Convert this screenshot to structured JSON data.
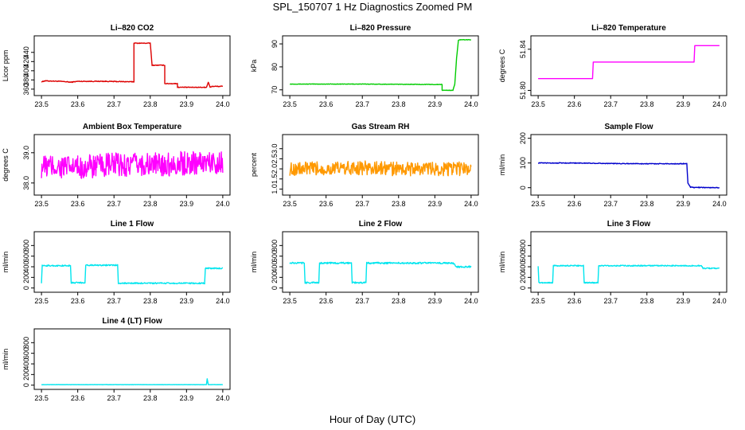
{
  "figure": {
    "title": "SPL_150707  1 Hz Diagnostics Zoomed PM",
    "xlabel": "Hour of Day (UTC)"
  },
  "chart_data": [
    {
      "type": "line",
      "title": "Li–820 CO2",
      "ylabel": "Licor ppm",
      "color": "#dd0000",
      "xlim": [
        23.48,
        24.02
      ],
      "ylim": [
        346,
        476
      ],
      "xticks": [
        "23.5",
        "23.6",
        "23.7",
        "23.8",
        "23.9",
        "24.0"
      ],
      "yticks": [
        "360",
        "380",
        "400",
        "420",
        "440"
      ],
      "noise": 0.8,
      "x": [
        23.5,
        23.505,
        23.51,
        23.55,
        23.57,
        23.58,
        23.6,
        23.67,
        23.75,
        23.755,
        23.755,
        23.8,
        23.805,
        23.81,
        23.84,
        23.84,
        23.87,
        23.875,
        23.875,
        23.9,
        23.95,
        23.955,
        23.96,
        23.965,
        23.97,
        24.0
      ],
      "y": [
        376,
        377,
        378,
        377,
        376,
        375,
        377,
        377,
        376,
        376,
        460,
        460,
        412,
        412,
        412,
        372,
        372,
        372,
        364,
        364,
        364,
        364,
        375,
        364,
        366,
        366
      ]
    },
    {
      "type": "line",
      "title": "Li–820 Pressure",
      "ylabel": "kPa",
      "color": "#00cc00",
      "xlim": [
        23.48,
        24.02
      ],
      "ylim": [
        67.5,
        93.5
      ],
      "xticks": [
        "23.5",
        "23.6",
        "23.7",
        "23.8",
        "23.9",
        "24.0"
      ],
      "yticks": [
        "70",
        "80",
        "90"
      ],
      "noise": 0.1,
      "x": [
        23.5,
        23.7,
        23.92,
        23.92,
        23.95,
        23.955,
        23.96,
        23.965,
        23.97,
        24.0
      ],
      "y": [
        72.5,
        72.5,
        72.3,
        69.8,
        69.8,
        72.5,
        84,
        91.5,
        91.8,
        91.8
      ]
    },
    {
      "type": "line",
      "title": "Li–820 Temperature",
      "ylabel": "degrees C",
      "color": "#ff00ff",
      "xlim": [
        23.48,
        24.02
      ],
      "ylim": [
        51.795,
        51.853
      ],
      "xticks": [
        "23.5",
        "23.6",
        "23.7",
        "23.8",
        "23.9",
        "24.0"
      ],
      "yticks": [
        "51.80",
        "51.84"
      ],
      "noise": 0,
      "x": [
        23.5,
        23.65,
        23.652,
        23.7,
        23.75,
        23.8,
        23.9,
        23.93,
        23.932,
        23.97,
        24.0
      ],
      "y": [
        51.8115,
        51.8115,
        51.8275,
        51.8275,
        51.8275,
        51.8275,
        51.8275,
        51.8275,
        51.8435,
        51.8435,
        51.8435
      ]
    },
    {
      "type": "line",
      "title": "Ambient Box Temperature",
      "ylabel": "degrees C",
      "color": "#ff00ff",
      "xlim": [
        23.48,
        24.02
      ],
      "ylim": [
        37.6,
        39.6
      ],
      "xticks": [
        "23.5",
        "23.6",
        "23.7",
        "23.8",
        "23.9",
        "24.0"
      ],
      "yticks": [
        "38.0",
        "39.0"
      ],
      "noise": 0.4,
      "x": [
        23.5,
        23.6,
        23.7,
        23.8,
        23.9,
        24.0
      ],
      "y": [
        38.55,
        38.5,
        38.6,
        38.6,
        38.65,
        38.7
      ]
    },
    {
      "type": "line",
      "title": "Gas Stream RH",
      "ylabel": "percent",
      "color": "#ff9900",
      "xlim": [
        23.48,
        24.02
      ],
      "ylim": [
        0.7,
        3.7
      ],
      "xticks": [
        "23.5",
        "23.6",
        "23.7",
        "23.8",
        "23.9",
        "24.0"
      ],
      "yticks": [
        "1.0",
        "1.5",
        "2.0",
        "2.5",
        "3.0"
      ],
      "noise": 0.35,
      "x": [
        23.5,
        23.6,
        23.7,
        23.8,
        23.9,
        24.0
      ],
      "y": [
        2.0,
        2.0,
        2.05,
        2.0,
        2.0,
        2.0
      ]
    },
    {
      "type": "line",
      "title": "Sample Flow",
      "ylabel": "ml/min",
      "color": "#0000cc",
      "xlim": [
        23.48,
        24.02
      ],
      "ylim": [
        -30,
        215
      ],
      "xticks": [
        "23.5",
        "23.6",
        "23.7",
        "23.8",
        "23.9",
        "24.0"
      ],
      "yticks": [
        "0",
        "100",
        "200"
      ],
      "noise": 1.5,
      "x": [
        23.5,
        23.6,
        23.7,
        23.8,
        23.9,
        23.91,
        23.913,
        23.92,
        23.93,
        24.0
      ],
      "y": [
        100,
        100,
        98,
        97,
        97,
        97,
        20,
        2,
        1,
        0
      ]
    },
    {
      "type": "line",
      "title": "Line 1 Flow",
      "ylabel": "ml/min",
      "color": "#00e5ee",
      "xlim": [
        23.48,
        24.02
      ],
      "ylim": [
        -80,
        1060
      ],
      "xticks": [
        "23.5",
        "23.6",
        "23.7",
        "23.8",
        "23.9",
        "24.0"
      ],
      "yticks": [
        "0",
        "200",
        "400",
        "600",
        "800"
      ],
      "noise": 12,
      "x": [
        23.5,
        23.502,
        23.58,
        23.582,
        23.62,
        23.622,
        23.71,
        23.712,
        23.95,
        23.952,
        24.0
      ],
      "y": [
        100,
        420,
        420,
        100,
        100,
        430,
        430,
        90,
        90,
        370,
        370
      ]
    },
    {
      "type": "line",
      "title": "Line 2 Flow",
      "ylabel": "ml/min",
      "color": "#00e5ee",
      "xlim": [
        23.48,
        24.02
      ],
      "ylim": [
        -80,
        1060
      ],
      "xticks": [
        "23.5",
        "23.6",
        "23.7",
        "23.8",
        "23.9",
        "24.0"
      ],
      "yticks": [
        "0",
        "200",
        "400",
        "600",
        "800"
      ],
      "noise": 15,
      "x": [
        23.5,
        23.54,
        23.542,
        23.58,
        23.582,
        23.67,
        23.672,
        23.71,
        23.712,
        23.95,
        23.96,
        24.0
      ],
      "y": [
        470,
        470,
        100,
        100,
        470,
        470,
        100,
        100,
        470,
        470,
        400,
        400
      ]
    },
    {
      "type": "line",
      "title": "Line 3 Flow",
      "ylabel": "ml/min",
      "color": "#00e5ee",
      "xlim": [
        23.48,
        24.02
      ],
      "ylim": [
        -80,
        1060
      ],
      "xticks": [
        "23.5",
        "23.6",
        "23.7",
        "23.8",
        "23.9",
        "24.0"
      ],
      "yticks": [
        "0",
        "200",
        "400",
        "600",
        "800"
      ],
      "noise": 10,
      "x": [
        23.5,
        23.502,
        23.54,
        23.542,
        23.625,
        23.627,
        23.665,
        23.667,
        23.95,
        23.955,
        24.0
      ],
      "y": [
        420,
        100,
        100,
        420,
        420,
        100,
        100,
        420,
        420,
        370,
        370
      ]
    },
    {
      "type": "line",
      "title": "Line 4 (LT) Flow",
      "ylabel": "ml/min",
      "color": "#00e5ee",
      "xlim": [
        23.48,
        24.02
      ],
      "ylim": [
        -80,
        1060
      ],
      "xticks": [
        "23.5",
        "23.6",
        "23.7",
        "23.8",
        "23.9",
        "24.0"
      ],
      "yticks": [
        "0",
        "200",
        "400",
        "600",
        "800"
      ],
      "noise": 2,
      "x": [
        23.5,
        23.955,
        23.957,
        23.96,
        23.962,
        24.0
      ],
      "y": [
        10,
        10,
        120,
        10,
        10,
        10
      ]
    }
  ]
}
